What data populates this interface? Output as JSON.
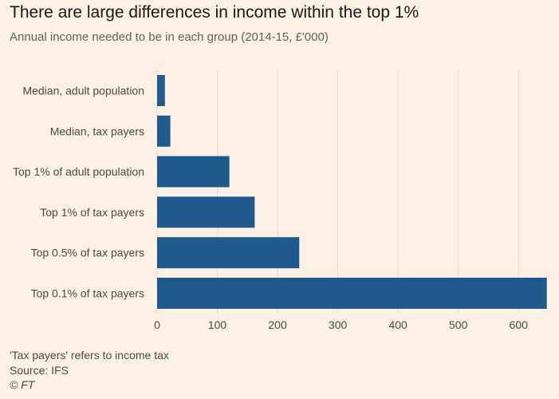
{
  "header": {
    "title": "There are large differences in income within the top 1%",
    "subtitle": "Annual income needed to be in each group (2014-15, £'000)"
  },
  "footer": {
    "note": "'Tax payers' refers to income tax",
    "source": "Source: IFS",
    "credit": "© FT"
  },
  "colors": {
    "bar": "#205a8c",
    "grid": "#e9dccf",
    "background": "#fdf1e6",
    "label": "#4d4845"
  },
  "chart_data": {
    "type": "bar",
    "orientation": "horizontal",
    "title": "There are large differences in income within the top 1%",
    "subtitle": "Annual income needed to be in each group (2014-15, £'000)",
    "categories": [
      "Median, adult population",
      "Median, tax payers",
      "Top 1% of adult population",
      "Top 1% of tax payers",
      "Top 0.5% of tax payers",
      "Top 0.1% of tax payers"
    ],
    "values": [
      13,
      22,
      120,
      162,
      236,
      647
    ],
    "xlim": [
      0,
      650
    ],
    "xticks": [
      0,
      100,
      200,
      300,
      400,
      500,
      600
    ],
    "grid": true
  }
}
